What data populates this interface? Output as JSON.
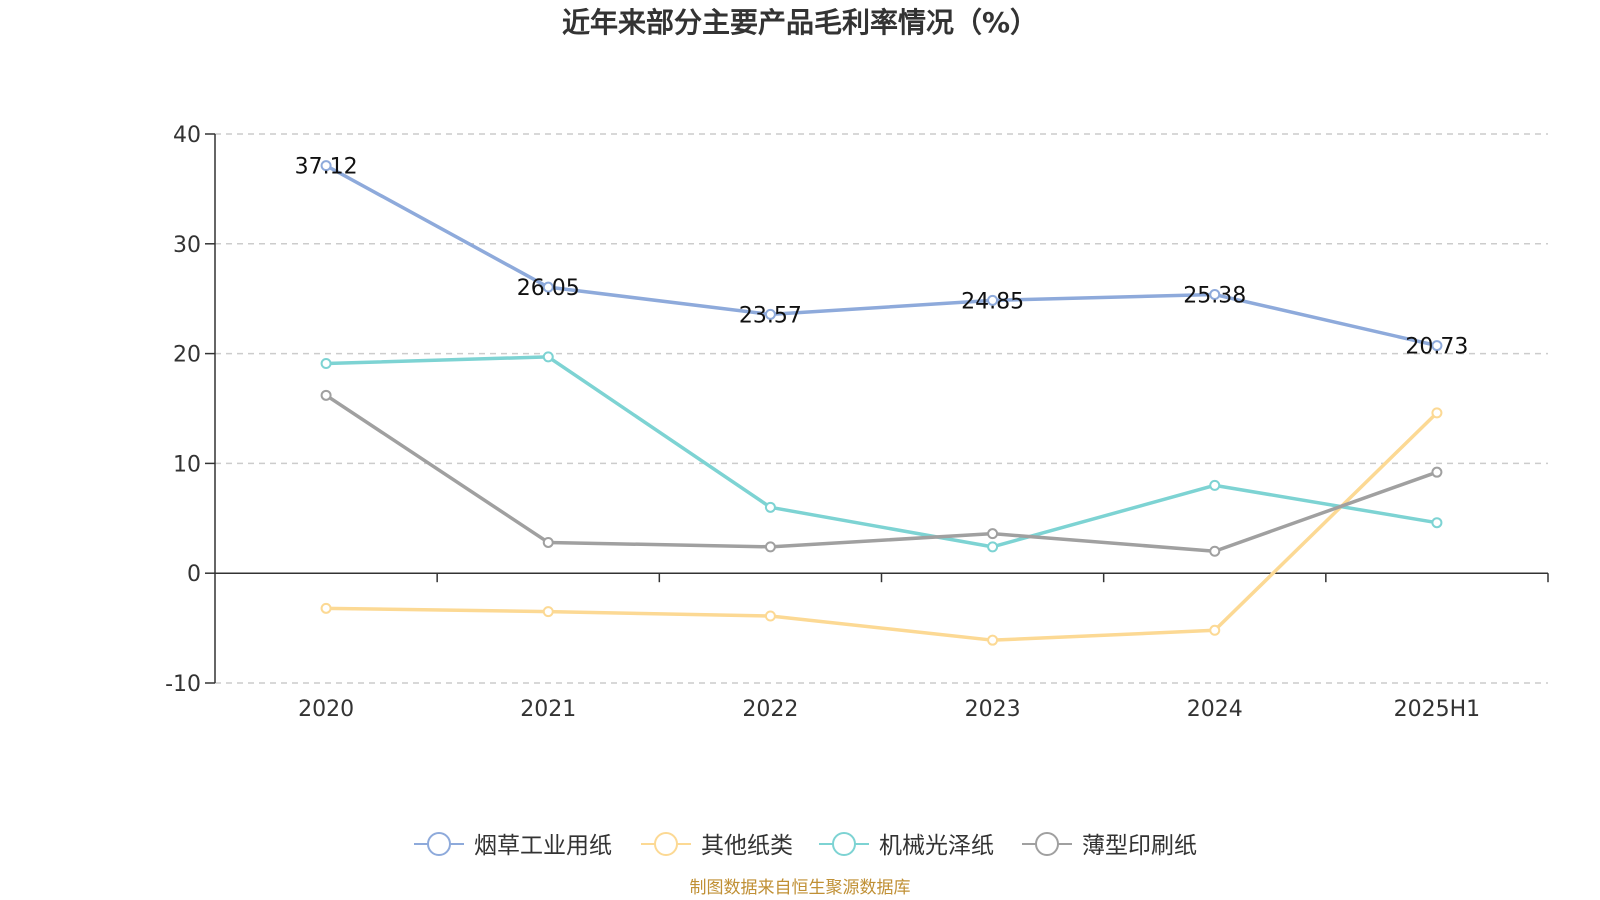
{
  "chart_data": {
    "type": "line",
    "title": "近年来部分主要产品毛利率情况（%）",
    "categories": [
      "2020",
      "2021",
      "2022",
      "2023",
      "2024",
      "2025H1"
    ],
    "ylim": [
      -10,
      40
    ],
    "yticks": [
      "-10",
      "0",
      "10",
      "20",
      "30",
      "40"
    ],
    "grid": true,
    "legend_position": "bottom",
    "series": [
      {
        "name": "烟草工业用纸",
        "color": "#8eaadb",
        "values": [
          37.12,
          26.05,
          23.57,
          24.85,
          25.38,
          20.73
        ],
        "labels": [
          "37.12",
          "26.05",
          "23.57",
          "24.85",
          "25.38",
          "20.73"
        ]
      },
      {
        "name": "其他纸类",
        "color": "#fcd994",
        "values": [
          -3.2,
          -3.5,
          -3.9,
          -6.1,
          -5.2,
          14.6
        ]
      },
      {
        "name": "机械光泽纸",
        "color": "#7dd3d3",
        "values": [
          19.1,
          19.7,
          6.0,
          2.4,
          8.0,
          4.6
        ]
      },
      {
        "name": "薄型印刷纸",
        "color": "#a0a0a0",
        "values": [
          16.2,
          2.8,
          2.4,
          3.6,
          2.0,
          9.2
        ]
      }
    ]
  },
  "source": "制图数据来自恒生聚源数据库"
}
